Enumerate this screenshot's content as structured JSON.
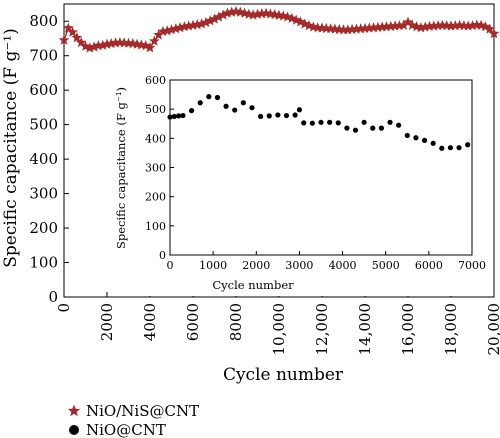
{
  "chart_data": [
    {
      "type": "line",
      "xlabel": "Cycle number",
      "ylabel": "Specific capacitance (F g⁻¹)",
      "xlim": [
        0,
        20000
      ],
      "ylim": [
        0,
        850
      ],
      "xticks": [
        0,
        2000,
        4000,
        6000,
        8000,
        10000,
        12000,
        14000,
        16000,
        18000,
        20000
      ],
      "xtick_labels": [
        "0",
        "2000",
        "4000",
        "6000",
        "8000",
        "10,000",
        "12,000",
        "14,000",
        "16,000",
        "18,000",
        "20,000"
      ],
      "yticks": [
        0,
        100,
        200,
        300,
        400,
        500,
        600,
        700,
        800
      ],
      "ytick_labels": [
        "0",
        "100",
        "200",
        "300",
        "400",
        "500",
        "600",
        "700",
        "800"
      ],
      "marker": "star",
      "color": "#a52a2a",
      "series": [
        {
          "name": "NiO/NiS@CNT",
          "x": [
            0,
            200,
            400,
            600,
            800,
            1000,
            1200,
            1400,
            1600,
            1800,
            2000,
            2200,
            2400,
            2600,
            2800,
            3000,
            3200,
            3400,
            3600,
            3800,
            4000,
            4200,
            4400,
            4600,
            4800,
            5000,
            5200,
            5400,
            5600,
            5800,
            6000,
            6200,
            6400,
            6600,
            6800,
            7000,
            7200,
            7400,
            7600,
            7800,
            8000,
            8200,
            8400,
            8600,
            8800,
            9000,
            9200,
            9400,
            9600,
            9800,
            10000,
            10200,
            10400,
            10600,
            10800,
            11000,
            11200,
            11400,
            11600,
            11800,
            12000,
            12200,
            12400,
            12600,
            12800,
            13000,
            13200,
            13400,
            13600,
            13800,
            14000,
            14200,
            14400,
            14600,
            14800,
            15000,
            15200,
            15400,
            15600,
            15800,
            16000,
            16200,
            16400,
            16600,
            16800,
            17000,
            17200,
            17400,
            17600,
            17800,
            18000,
            18200,
            18400,
            18600,
            18800,
            19000,
            19200,
            19400,
            19600,
            19800,
            20000
          ],
          "y": [
            745,
            780,
            768,
            752,
            738,
            727,
            722,
            725,
            729,
            730,
            733,
            735,
            737,
            738,
            737,
            736,
            735,
            733,
            731,
            729,
            723,
            742,
            760,
            770,
            772,
            775,
            778,
            781,
            784,
            786,
            788,
            790,
            792,
            796,
            801,
            806,
            812,
            818,
            823,
            826,
            828,
            826,
            823,
            820,
            818,
            820,
            822,
            823,
            821,
            819,
            817,
            815,
            812,
            808,
            803,
            798,
            792,
            787,
            783,
            781,
            780,
            779,
            778,
            777,
            776,
            775,
            775,
            776,
            777,
            778,
            779,
            780,
            781,
            782,
            783,
            784,
            785,
            786,
            787,
            788,
            797,
            788,
            784,
            781,
            783,
            785,
            786,
            787,
            788,
            787,
            786,
            787,
            788,
            787,
            786,
            787,
            789,
            788,
            784,
            777,
            764
          ]
        }
      ]
    },
    {
      "type": "scatter",
      "xlabel": "Cycle number",
      "ylabel": "Specific capacitance (F g⁻¹)",
      "xlim": [
        0,
        7000
      ],
      "ylim": [
        0,
        600
      ],
      "xticks": [
        0,
        1000,
        2000,
        3000,
        4000,
        5000,
        6000,
        7000
      ],
      "xtick_labels": [
        "0",
        "1000",
        "2000",
        "3000",
        "4000",
        "5000",
        "6000",
        "7000"
      ],
      "yticks": [
        0,
        100,
        200,
        300,
        400,
        500,
        600
      ],
      "ytick_labels": [
        "0",
        "100",
        "200",
        "300",
        "400",
        "500",
        "600"
      ],
      "marker": "circle",
      "color": "#000000",
      "series": [
        {
          "name": "NiO@CNT",
          "x": [
            0,
            100,
            200,
            300,
            500,
            700,
            900,
            1100,
            1300,
            1500,
            1700,
            1900,
            2100,
            2300,
            2500,
            2700,
            2900,
            3000,
            3100,
            3300,
            3500,
            3700,
            3900,
            4100,
            4300,
            4500,
            4700,
            4900,
            5100,
            5300,
            5500,
            5700,
            5900,
            6100,
            6300,
            6500,
            6700,
            6900
          ],
          "y": [
            473,
            475,
            477,
            478,
            495,
            522,
            543,
            540,
            510,
            497,
            522,
            505,
            475,
            477,
            480,
            478,
            480,
            498,
            453,
            452,
            455,
            455,
            453,
            435,
            428,
            455,
            435,
            435,
            455,
            445,
            410,
            402,
            393,
            383,
            366,
            368,
            368,
            378
          ]
        }
      ]
    }
  ],
  "legend": {
    "position": "bottom-left",
    "items": [
      {
        "label": "NiO/NiS@CNT",
        "marker": "star",
        "color": "#a52a2a"
      },
      {
        "label": "NiO@CNT",
        "marker": "circle",
        "color": "#000000"
      }
    ]
  }
}
